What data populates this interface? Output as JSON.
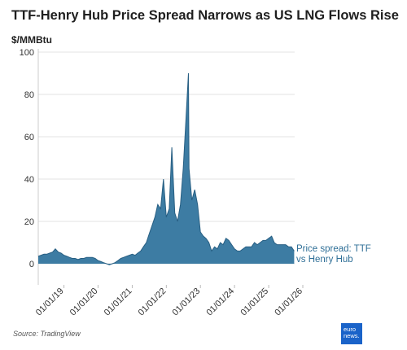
{
  "chart_data": {
    "type": "area",
    "title": "TTF-Henry Hub Price Spread Narrows as US LNG Flows Rise",
    "y_label": "$/MMBtu",
    "source": "Source: TradingView",
    "logo": [
      "euro",
      "news."
    ],
    "xlim": [
      "2018-04-01",
      "2026-01-01"
    ],
    "xticks": [
      {
        "value": "2019-01-01",
        "label": "01/01/19"
      },
      {
        "value": "2020-01-01",
        "label": "01/01/20"
      },
      {
        "value": "2021-01-01",
        "label": "01/01/21"
      },
      {
        "value": "2022-01-01",
        "label": "01/01/22"
      },
      {
        "value": "2023-01-01",
        "label": "01/01/23"
      },
      {
        "value": "2024-01-01",
        "label": "01/01/24"
      },
      {
        "value": "2025-01-01",
        "label": "01/01/25"
      },
      {
        "value": "2026-01-01",
        "label": "01/01/26"
      }
    ],
    "ylim": [
      -10,
      100
    ],
    "yticks": [
      0,
      20,
      40,
      60,
      80,
      100
    ],
    "grid": true,
    "x": [
      "2018-04-01",
      "2018-05-01",
      "2018-06-01",
      "2018-07-01",
      "2018-08-01",
      "2018-09-01",
      "2018-10-01",
      "2018-11-01",
      "2018-12-01",
      "2019-01-01",
      "2019-02-01",
      "2019-03-01",
      "2019-04-01",
      "2019-05-01",
      "2019-06-01",
      "2019-07-01",
      "2019-08-01",
      "2019-09-01",
      "2019-10-01",
      "2019-11-01",
      "2019-12-01",
      "2020-01-01",
      "2020-02-01",
      "2020-03-01",
      "2020-04-01",
      "2020-05-01",
      "2020-06-01",
      "2020-07-01",
      "2020-08-01",
      "2020-09-01",
      "2020-10-01",
      "2020-11-01",
      "2020-12-01",
      "2021-01-01",
      "2021-02-01",
      "2021-03-01",
      "2021-04-01",
      "2021-05-01",
      "2021-06-01",
      "2021-07-01",
      "2021-08-01",
      "2021-09-01",
      "2021-10-01",
      "2021-11-01",
      "2021-12-01",
      "2022-01-01",
      "2022-02-01",
      "2022-03-01",
      "2022-04-01",
      "2022-05-01",
      "2022-06-01",
      "2022-07-01",
      "2022-08-01",
      "2022-08-26",
      "2022-09-01",
      "2022-10-01",
      "2022-11-01",
      "2022-12-01",
      "2023-01-01",
      "2023-02-01",
      "2023-03-01",
      "2023-04-01",
      "2023-05-01",
      "2023-06-01",
      "2023-07-01",
      "2023-08-01",
      "2023-09-01",
      "2023-10-01",
      "2023-11-01",
      "2023-12-01",
      "2024-01-01",
      "2024-02-01",
      "2024-03-01",
      "2024-04-01",
      "2024-05-01",
      "2024-06-01",
      "2024-07-01",
      "2024-08-01",
      "2024-09-01",
      "2024-10-01",
      "2024-11-01",
      "2024-12-01",
      "2025-01-01",
      "2025-02-01",
      "2025-03-01",
      "2025-04-01",
      "2025-05-01",
      "2025-06-01",
      "2025-07-01",
      "2025-08-01",
      "2025-09-01",
      "2025-10-01"
    ],
    "series": [
      {
        "name": "Price spread: TTF vs Henry Hub",
        "color": "#3d7ca3",
        "line_color": "#285f83",
        "values": [
          3.5,
          4,
          4.5,
          4.5,
          5,
          5.5,
          7,
          5.5,
          5,
          4,
          3.5,
          3,
          2.5,
          2.5,
          2,
          2.5,
          2.5,
          3,
          3,
          3,
          2.5,
          1.5,
          1,
          0.5,
          0,
          -0.5,
          0,
          0.5,
          1.5,
          2.5,
          3,
          3.5,
          4,
          4.5,
          4,
          5,
          6,
          8,
          10,
          14,
          18,
          22,
          28,
          26,
          40,
          22,
          26,
          55,
          24,
          20,
          28,
          45,
          70,
          90,
          45,
          30,
          35,
          28,
          15,
          13,
          12,
          10,
          6,
          8,
          7,
          10,
          9,
          12,
          11,
          9,
          7,
          6,
          6,
          7,
          8,
          8,
          8,
          10,
          9,
          10,
          11,
          11,
          12,
          13,
          10,
          9,
          9,
          9,
          9,
          8,
          8,
          6
        ]
      }
    ]
  }
}
